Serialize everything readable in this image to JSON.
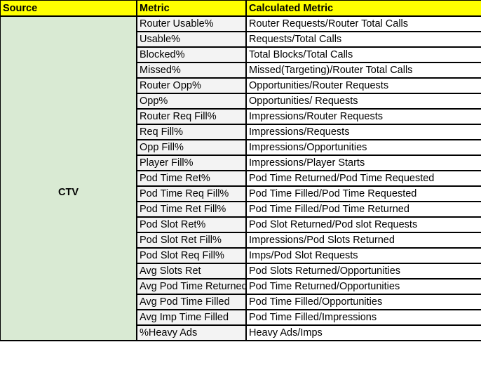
{
  "headers": {
    "source": "Source",
    "metric": "Metric",
    "calculated": "Calculated Metric"
  },
  "source": "CTV",
  "colors": {
    "header": "#ffff00",
    "source_cell": "#d9ead3",
    "metric_cell": "#f3f3f3"
  },
  "rows": [
    {
      "metric": "Router Usable%",
      "calc": "Router Requests/Router Total Calls"
    },
    {
      "metric": "Usable%",
      "calc": "Requests/Total Calls"
    },
    {
      "metric": "Blocked%",
      "calc": "Total Blocks/Total Calls"
    },
    {
      "metric": "Missed%",
      "calc": "Missed(Targeting)/Router Total Calls"
    },
    {
      "metric": "Router Opp%",
      "calc": "Opportunities/Router Requests"
    },
    {
      "metric": "Opp%",
      "calc": "Opportunities/ Requests"
    },
    {
      "metric": "Router Req Fill%",
      "calc": "Impressions/Router Requests"
    },
    {
      "metric": "Req Fill%",
      "calc": "Impressions/Requests"
    },
    {
      "metric": "Opp Fill%",
      "calc": "Impressions/Opportunities"
    },
    {
      "metric": "Player Fill%",
      "calc": "Impressions/Player Starts"
    },
    {
      "metric": "Pod Time Ret%",
      "calc": "Pod Time Returned/Pod Time Requested"
    },
    {
      "metric": "Pod Time Req Fill%",
      "calc": "Pod Time Filled/Pod Time Requested"
    },
    {
      "metric": "Pod Time Ret Fill%",
      "calc": "Pod Time Filled/Pod Time Returned"
    },
    {
      "metric": "Pod Slot Ret%",
      "calc": "Pod Slot Returned/Pod slot Requests"
    },
    {
      "metric": "Pod Slot Ret Fill%",
      "calc": "Impressions/Pod Slots Returned"
    },
    {
      "metric": "Pod Slot Req Fill%",
      "calc": "Imps/Pod Slot Requests"
    },
    {
      "metric": "Avg Slots Ret",
      "calc": "Pod Slots Returned/Opportunities"
    },
    {
      "metric": "Avg Pod Time Returned",
      "calc": "Pod Time Returned/Opportunities"
    },
    {
      "metric": "Avg Pod Time Filled",
      "calc": "Pod Time Filled/Opportunities"
    },
    {
      "metric": "Avg Imp Time Filled",
      "calc": "Pod Time Filled/Impressions"
    },
    {
      "metric": "%Heavy Ads",
      "calc": "Heavy Ads/Imps"
    }
  ]
}
